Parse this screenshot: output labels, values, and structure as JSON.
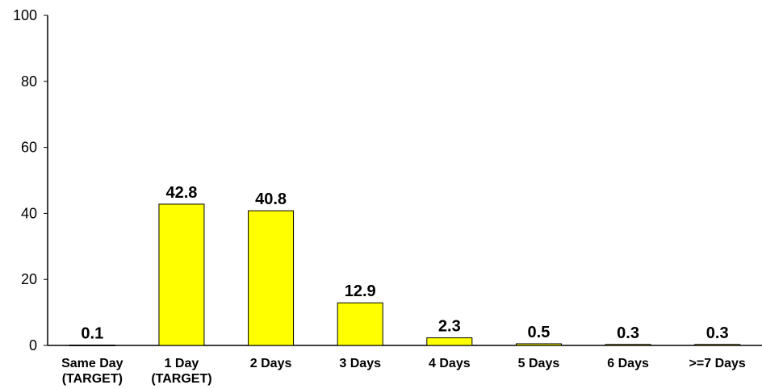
{
  "chart_data": {
    "type": "bar",
    "title": "",
    "xlabel": "",
    "ylabel": "",
    "ylim": [
      0,
      100
    ],
    "yticks": [
      0,
      20,
      40,
      60,
      80,
      100
    ],
    "grid": false,
    "categories": [
      [
        "Same Day",
        "(TARGET)"
      ],
      [
        "1 Day",
        "(TARGET)"
      ],
      [
        "2 Days"
      ],
      [
        "3 Days"
      ],
      [
        "4 Days"
      ],
      [
        "5 Days"
      ],
      [
        "6 Days"
      ],
      [
        ">=7 Days"
      ]
    ],
    "values": [
      0.1,
      42.8,
      40.8,
      12.9,
      2.3,
      0.5,
      0.3,
      0.3
    ],
    "data_labels": [
      "0.1",
      "42.8",
      "40.8",
      "12.9",
      "2.3",
      "0.5",
      "0.3",
      "0.3"
    ],
    "colors": {
      "bar_fill": "#ffff00",
      "bar_stroke": "#000000",
      "axis": "#000000"
    }
  }
}
